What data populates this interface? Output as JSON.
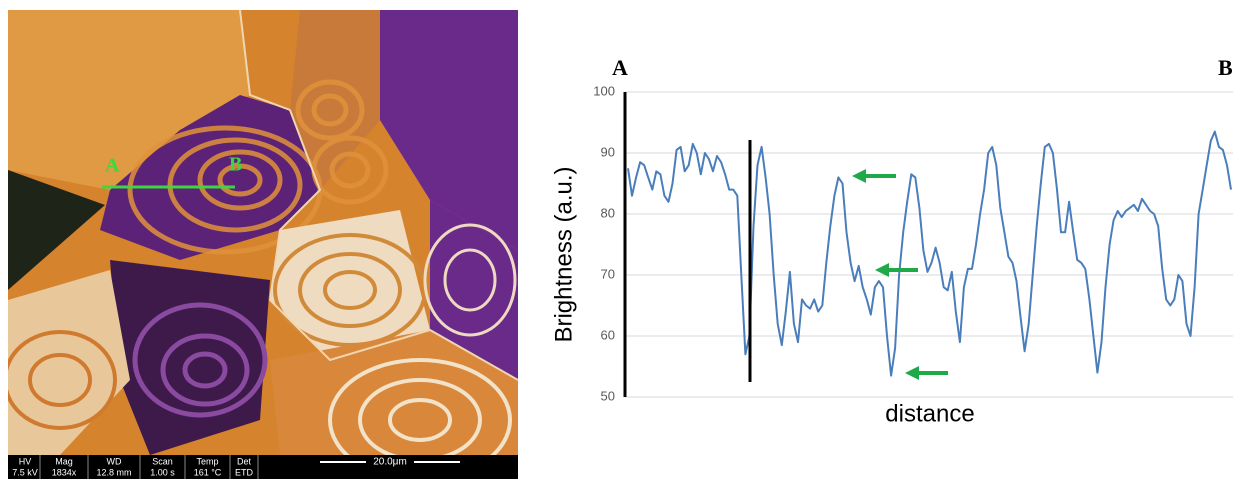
{
  "image": {
    "label_a": "A",
    "label_b": "B",
    "info_bar": {
      "headers": [
        "HV",
        "Mag",
        "WD",
        "Scan",
        "Temp",
        "Det"
      ],
      "values": [
        "7.5 kV",
        "1834x",
        "12.8 mm",
        "1.00 s",
        "161 °C",
        "ETD"
      ],
      "scale": "20.0μm"
    }
  },
  "chart_data": {
    "type": "line",
    "ylabel": "Brightness (a.u.)",
    "xlabel": "distance",
    "annotations": [
      "A",
      "B"
    ],
    "ylim": [
      50,
      100
    ],
    "yticks": [
      50,
      60,
      70,
      80,
      90,
      100
    ],
    "grid": true,
    "color": "#4a7ebb",
    "values": [
      87.5,
      83,
      86,
      88.5,
      88,
      86,
      84,
      87,
      86.5,
      83,
      82,
      85,
      90.5,
      91,
      87,
      88,
      91.5,
      90,
      86.5,
      90,
      89,
      87,
      89.5,
      88.5,
      86.5,
      84,
      84,
      83,
      70,
      57,
      60,
      78,
      88,
      91,
      86,
      80,
      70,
      62,
      58.5,
      64,
      70.5,
      62,
      59,
      66,
      65,
      64.5,
      66,
      64,
      65,
      72,
      78,
      83,
      86,
      85,
      77,
      72,
      69,
      71.5,
      68,
      66,
      63.5,
      68,
      69,
      68,
      60,
      53.5,
      58,
      70,
      77,
      82,
      86.5,
      86,
      81,
      74,
      70.5,
      72,
      74.5,
      72,
      68,
      67.5,
      70.5,
      64,
      59,
      68,
      71,
      71,
      75,
      80,
      84,
      90,
      91,
      88,
      81,
      77,
      73,
      72,
      69,
      63,
      57.5,
      62,
      70,
      78,
      85,
      91,
      91.5,
      90,
      84,
      77,
      77,
      82,
      77,
      72.5,
      72,
      71,
      66,
      60,
      54,
      59,
      68,
      75,
      79,
      80.5,
      79.5,
      80.5,
      81,
      81.5,
      80.5,
      82.5,
      81.5,
      80.5,
      80,
      78,
      71,
      66,
      65,
      66,
      70,
      69,
      62,
      60,
      68,
      80,
      84,
      88,
      92,
      93.5,
      91,
      90.5,
      88,
      84
    ]
  }
}
